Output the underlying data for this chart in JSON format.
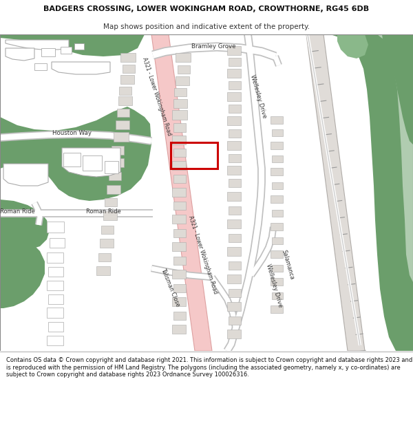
{
  "title_line1": "BADGERS CROSSING, LOWER WOKINGHAM ROAD, CROWTHORNE, RG45 6DB",
  "title_line2": "Map shows position and indicative extent of the property.",
  "footer_text": "Contains OS data © Crown copyright and database right 2021. This information is subject to Crown copyright and database rights 2023 and is reproduced with the permission of HM Land Registry. The polygons (including the associated geometry, namely x, y co-ordinates) are subject to Crown copyright and database rights 2023 Ordnance Survey 100026316.",
  "map_bg": "#f0ede8",
  "green_dark": "#6b9e6b",
  "green_medium": "#8ab88a",
  "green_light": "#b0ccb0",
  "road_white": "#ffffff",
  "road_border": "#c8c8c8",
  "main_road_fill": "#f5c8c8",
  "main_road_border": "#dda0a0",
  "building_fill": "#dedad5",
  "building_border": "#aaa8a0",
  "white_building": "#ffffff",
  "railway_fill": "#e0dcd8",
  "railway_border": "#b0aca8",
  "highlight_red": "#dd0000",
  "text_dark": "#222222",
  "text_road": "#444444"
}
